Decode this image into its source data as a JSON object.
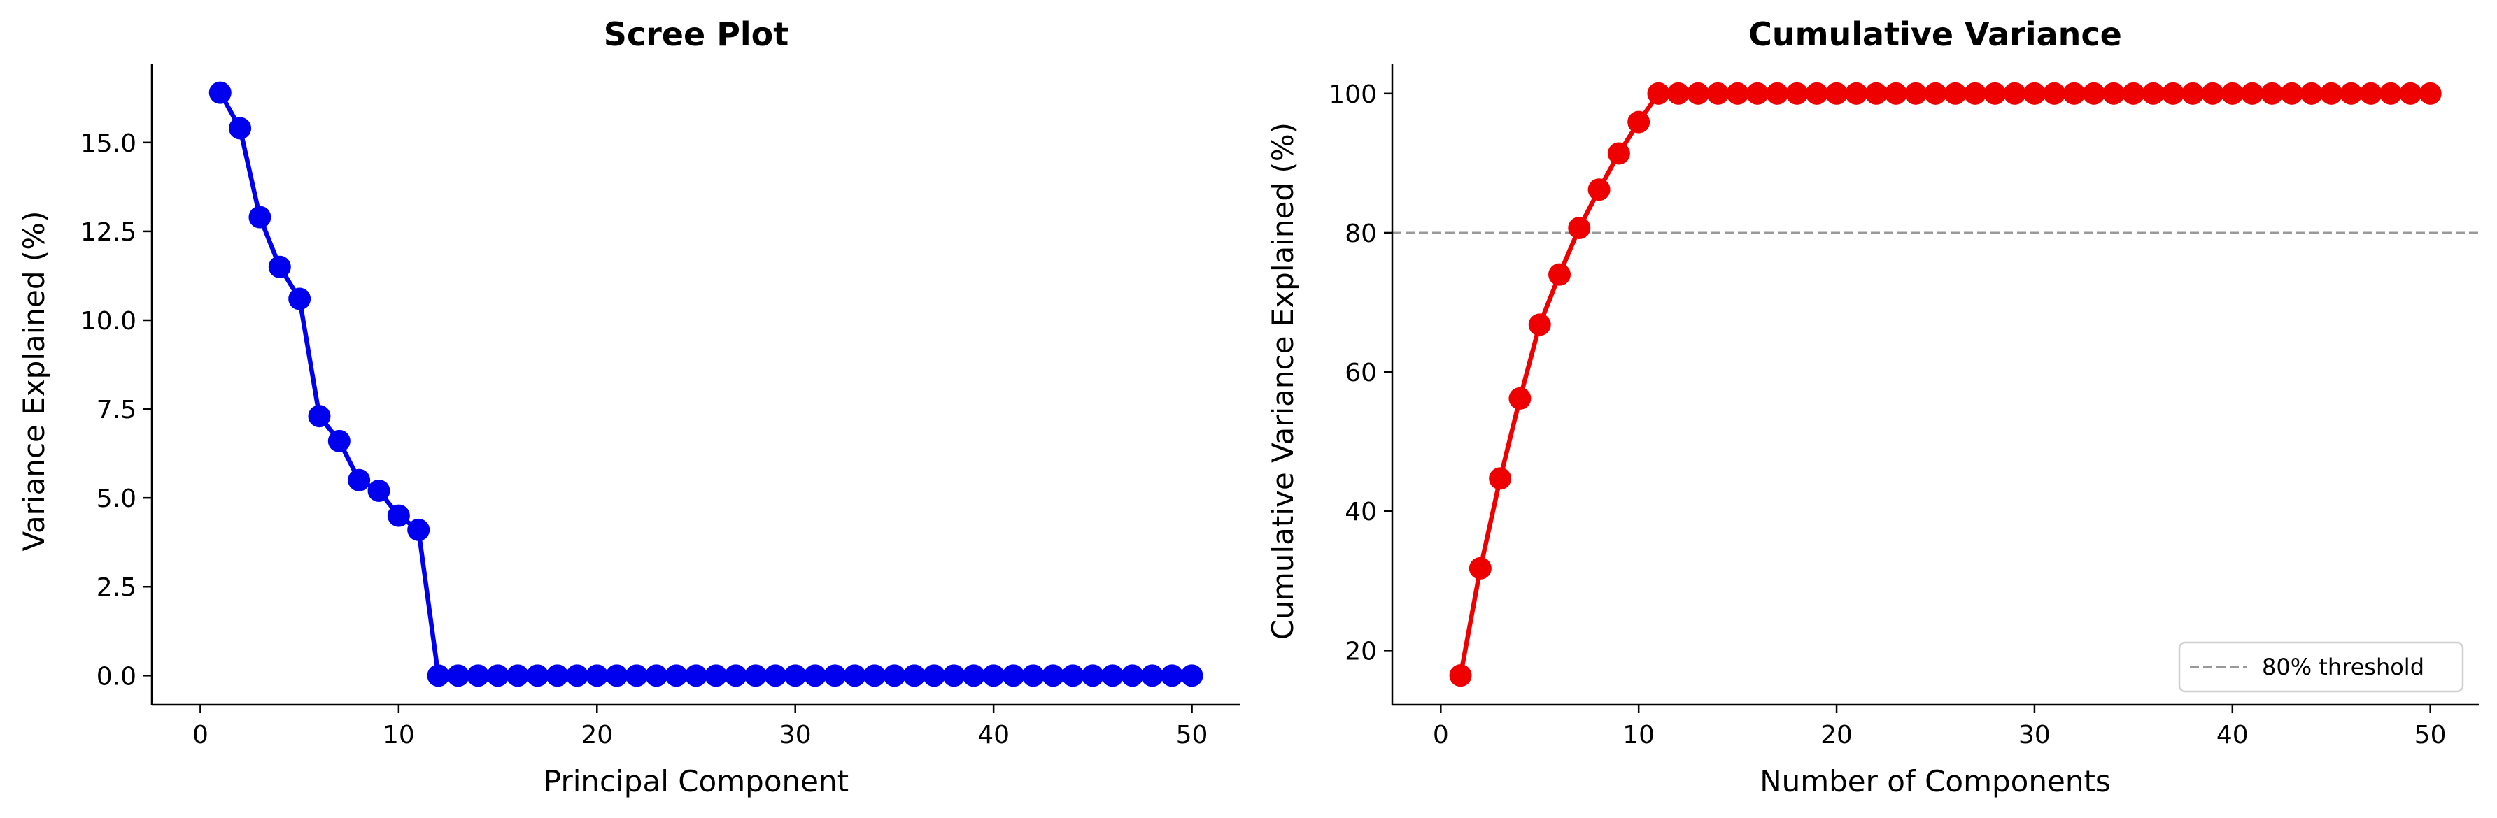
{
  "chart_data": [
    {
      "type": "line",
      "title": "Scree Plot",
      "xlabel": "Principal Component",
      "ylabel": "Variance Explained (%)",
      "xlim": [
        -2.45,
        52.45
      ],
      "ylim": [
        -0.82,
        17.2
      ],
      "xticks": [
        0,
        10,
        20,
        30,
        40,
        50
      ],
      "xtick_labels": [
        "0",
        "10",
        "20",
        "30",
        "40",
        "50"
      ],
      "yticks": [
        0,
        2.5,
        5,
        7.5,
        10,
        12.5,
        15
      ],
      "ytick_labels": [
        "0.0",
        "2.5",
        "5.0",
        "7.5",
        "10.0",
        "12.5",
        "15.0"
      ],
      "color": "#0000ee",
      "x": [
        1,
        2,
        3,
        4,
        5,
        6,
        7,
        8,
        9,
        10,
        11,
        12,
        13,
        14,
        15,
        16,
        17,
        18,
        19,
        20,
        21,
        22,
        23,
        24,
        25,
        26,
        27,
        28,
        29,
        30,
        31,
        32,
        33,
        34,
        35,
        36,
        37,
        38,
        39,
        40,
        41,
        42,
        43,
        44,
        45,
        46,
        47,
        48,
        49,
        50
      ],
      "values": [
        16.4,
        15.4,
        12.9,
        11.5,
        10.6,
        7.3,
        6.6,
        5.5,
        5.2,
        4.5,
        4.1,
        0,
        0,
        0,
        0,
        0,
        0,
        0,
        0,
        0,
        0,
        0,
        0,
        0,
        0,
        0,
        0,
        0,
        0,
        0,
        0,
        0,
        0,
        0,
        0,
        0,
        0,
        0,
        0,
        0,
        0,
        0,
        0,
        0,
        0,
        0,
        0,
        0,
        0,
        0
      ]
    },
    {
      "type": "line",
      "title": "Cumulative Variance",
      "xlabel": "Number of Components",
      "ylabel": "Cumulative Variance Explained (%)",
      "xlim": [
        -2.45,
        52.45
      ],
      "ylim": [
        12.2,
        104.2
      ],
      "xticks": [
        0,
        10,
        20,
        30,
        40,
        50
      ],
      "xtick_labels": [
        "0",
        "10",
        "20",
        "30",
        "40",
        "50"
      ],
      "yticks": [
        20,
        40,
        60,
        80,
        100
      ],
      "ytick_labels": [
        "20",
        "40",
        "60",
        "80",
        "100"
      ],
      "color": "#ee0000",
      "threshold": 80,
      "threshold_color": "#999999",
      "legend": [
        "80% threshold"
      ],
      "legend_position": "lower-right",
      "x": [
        1,
        2,
        3,
        4,
        5,
        6,
        7,
        8,
        9,
        10,
        11,
        12,
        13,
        14,
        15,
        16,
        17,
        18,
        19,
        20,
        21,
        22,
        23,
        24,
        25,
        26,
        27,
        28,
        29,
        30,
        31,
        32,
        33,
        34,
        35,
        36,
        37,
        38,
        39,
        40,
        41,
        42,
        43,
        44,
        45,
        46,
        47,
        48,
        49,
        50
      ],
      "values": [
        16.4,
        31.8,
        44.7,
        56.2,
        66.8,
        74.0,
        80.7,
        86.2,
        91.4,
        95.9,
        100,
        100,
        100,
        100,
        100,
        100,
        100,
        100,
        100,
        100,
        100,
        100,
        100,
        100,
        100,
        100,
        100,
        100,
        100,
        100,
        100,
        100,
        100,
        100,
        100,
        100,
        100,
        100,
        100,
        100,
        100,
        100,
        100,
        100,
        100,
        100,
        100,
        100,
        100,
        100
      ]
    }
  ]
}
